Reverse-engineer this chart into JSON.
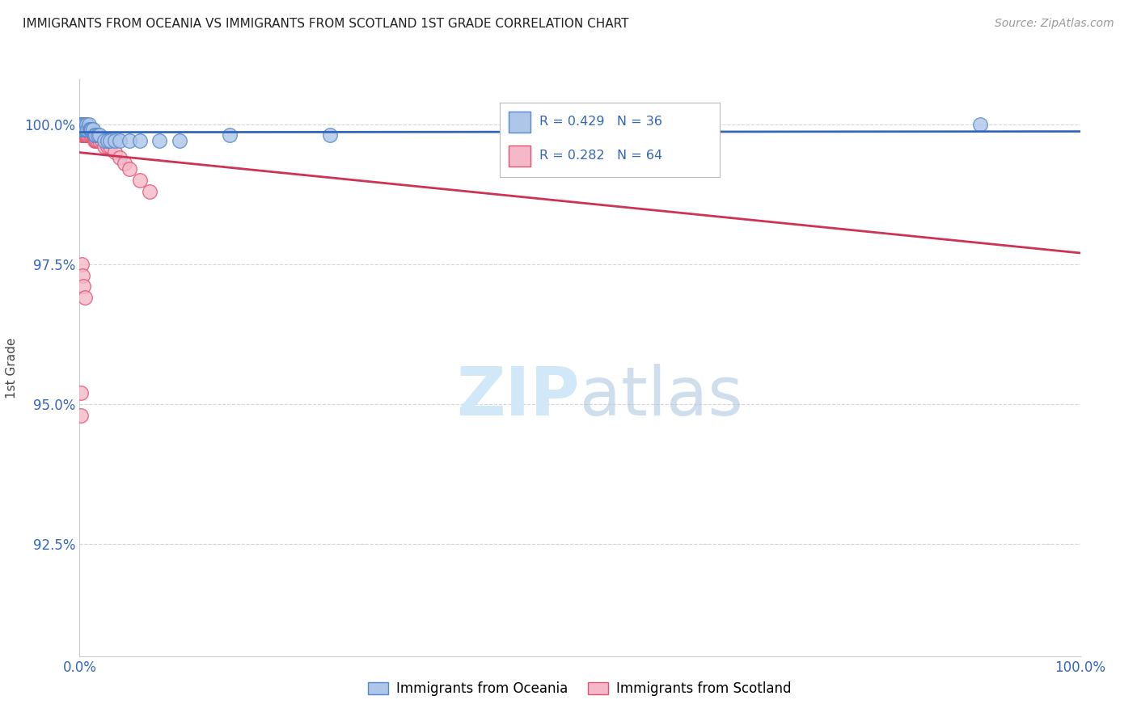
{
  "title": "IMMIGRANTS FROM OCEANIA VS IMMIGRANTS FROM SCOTLAND 1ST GRADE CORRELATION CHART",
  "source": "Source: ZipAtlas.com",
  "ylabel": "1st Grade",
  "background_color": "#ffffff",
  "grid_color": "#cccccc",
  "title_color": "#222222",
  "source_color": "#999999",
  "oceania_color": "#aec6e8",
  "oceania_edge_color": "#5588cc",
  "scotland_color": "#f5b8c8",
  "scotland_edge_color": "#e05575",
  "trendline_oceania_color": "#3366bb",
  "trendline_scotland_color": "#cc3355",
  "tick_color": "#3366bb",
  "legend_label_oceania": "Immigrants from Oceania",
  "legend_label_scotland": "Immigrants from Scotland",
  "watermark_color": "#d0e8f8",
  "xlim": [
    0.0,
    1.0
  ],
  "ylim": [
    0.905,
    1.008
  ],
  "y_ticks": [
    0.925,
    0.95,
    0.975,
    1.0
  ],
  "y_tick_labels": [
    "92.5%",
    "95.0%",
    "97.5%",
    "100.0%"
  ],
  "x_ticks": [
    0.0,
    1.0
  ],
  "x_tick_labels": [
    "0.0%",
    "100.0%"
  ],
  "oceania_x": [
    0.001,
    0.001,
    0.002,
    0.002,
    0.003,
    0.003,
    0.003,
    0.004,
    0.004,
    0.005,
    0.005,
    0.006,
    0.007,
    0.008,
    0.009,
    0.01,
    0.011,
    0.012,
    0.013,
    0.015,
    0.016,
    0.018,
    0.02,
    0.025,
    0.028,
    0.03,
    0.035,
    0.04,
    0.05,
    0.06,
    0.08,
    0.1,
    0.15,
    0.25,
    0.5,
    0.9
  ],
  "oceania_y": [
    0.999,
    1.0,
    1.0,
    0.999,
    1.0,
    0.999,
    1.0,
    1.0,
    0.999,
    1.0,
    0.999,
    0.999,
    1.0,
    0.999,
    1.0,
    0.999,
    0.999,
    0.999,
    0.999,
    0.998,
    0.998,
    0.998,
    0.998,
    0.997,
    0.997,
    0.997,
    0.997,
    0.997,
    0.997,
    0.997,
    0.997,
    0.997,
    0.998,
    0.998,
    0.998,
    1.0
  ],
  "scotland_x": [
    0.001,
    0.001,
    0.001,
    0.001,
    0.001,
    0.002,
    0.002,
    0.002,
    0.002,
    0.002,
    0.002,
    0.002,
    0.002,
    0.003,
    0.003,
    0.003,
    0.003,
    0.003,
    0.003,
    0.003,
    0.004,
    0.004,
    0.004,
    0.004,
    0.004,
    0.005,
    0.005,
    0.005,
    0.005,
    0.006,
    0.006,
    0.006,
    0.007,
    0.007,
    0.008,
    0.008,
    0.009,
    0.009,
    0.01,
    0.011,
    0.012,
    0.013,
    0.014,
    0.015,
    0.016,
    0.017,
    0.018,
    0.02,
    0.022,
    0.025,
    0.028,
    0.03,
    0.035,
    0.04,
    0.045,
    0.05,
    0.06,
    0.07,
    0.002,
    0.003,
    0.004,
    0.005,
    0.001,
    0.001
  ],
  "scotland_y": [
    1.0,
    1.0,
    1.0,
    0.999,
    0.999,
    1.0,
    1.0,
    0.999,
    0.999,
    0.999,
    0.999,
    0.999,
    0.998,
    1.0,
    0.999,
    0.999,
    0.999,
    0.999,
    0.999,
    0.998,
    1.0,
    0.999,
    0.999,
    0.999,
    0.998,
    1.0,
    0.999,
    0.999,
    0.998,
    0.999,
    0.999,
    0.998,
    0.999,
    0.998,
    0.999,
    0.998,
    0.999,
    0.998,
    0.999,
    0.998,
    0.998,
    0.998,
    0.998,
    0.997,
    0.997,
    0.997,
    0.997,
    0.997,
    0.997,
    0.996,
    0.996,
    0.996,
    0.995,
    0.994,
    0.993,
    0.992,
    0.99,
    0.988,
    0.975,
    0.973,
    0.971,
    0.969,
    0.952,
    0.948
  ]
}
